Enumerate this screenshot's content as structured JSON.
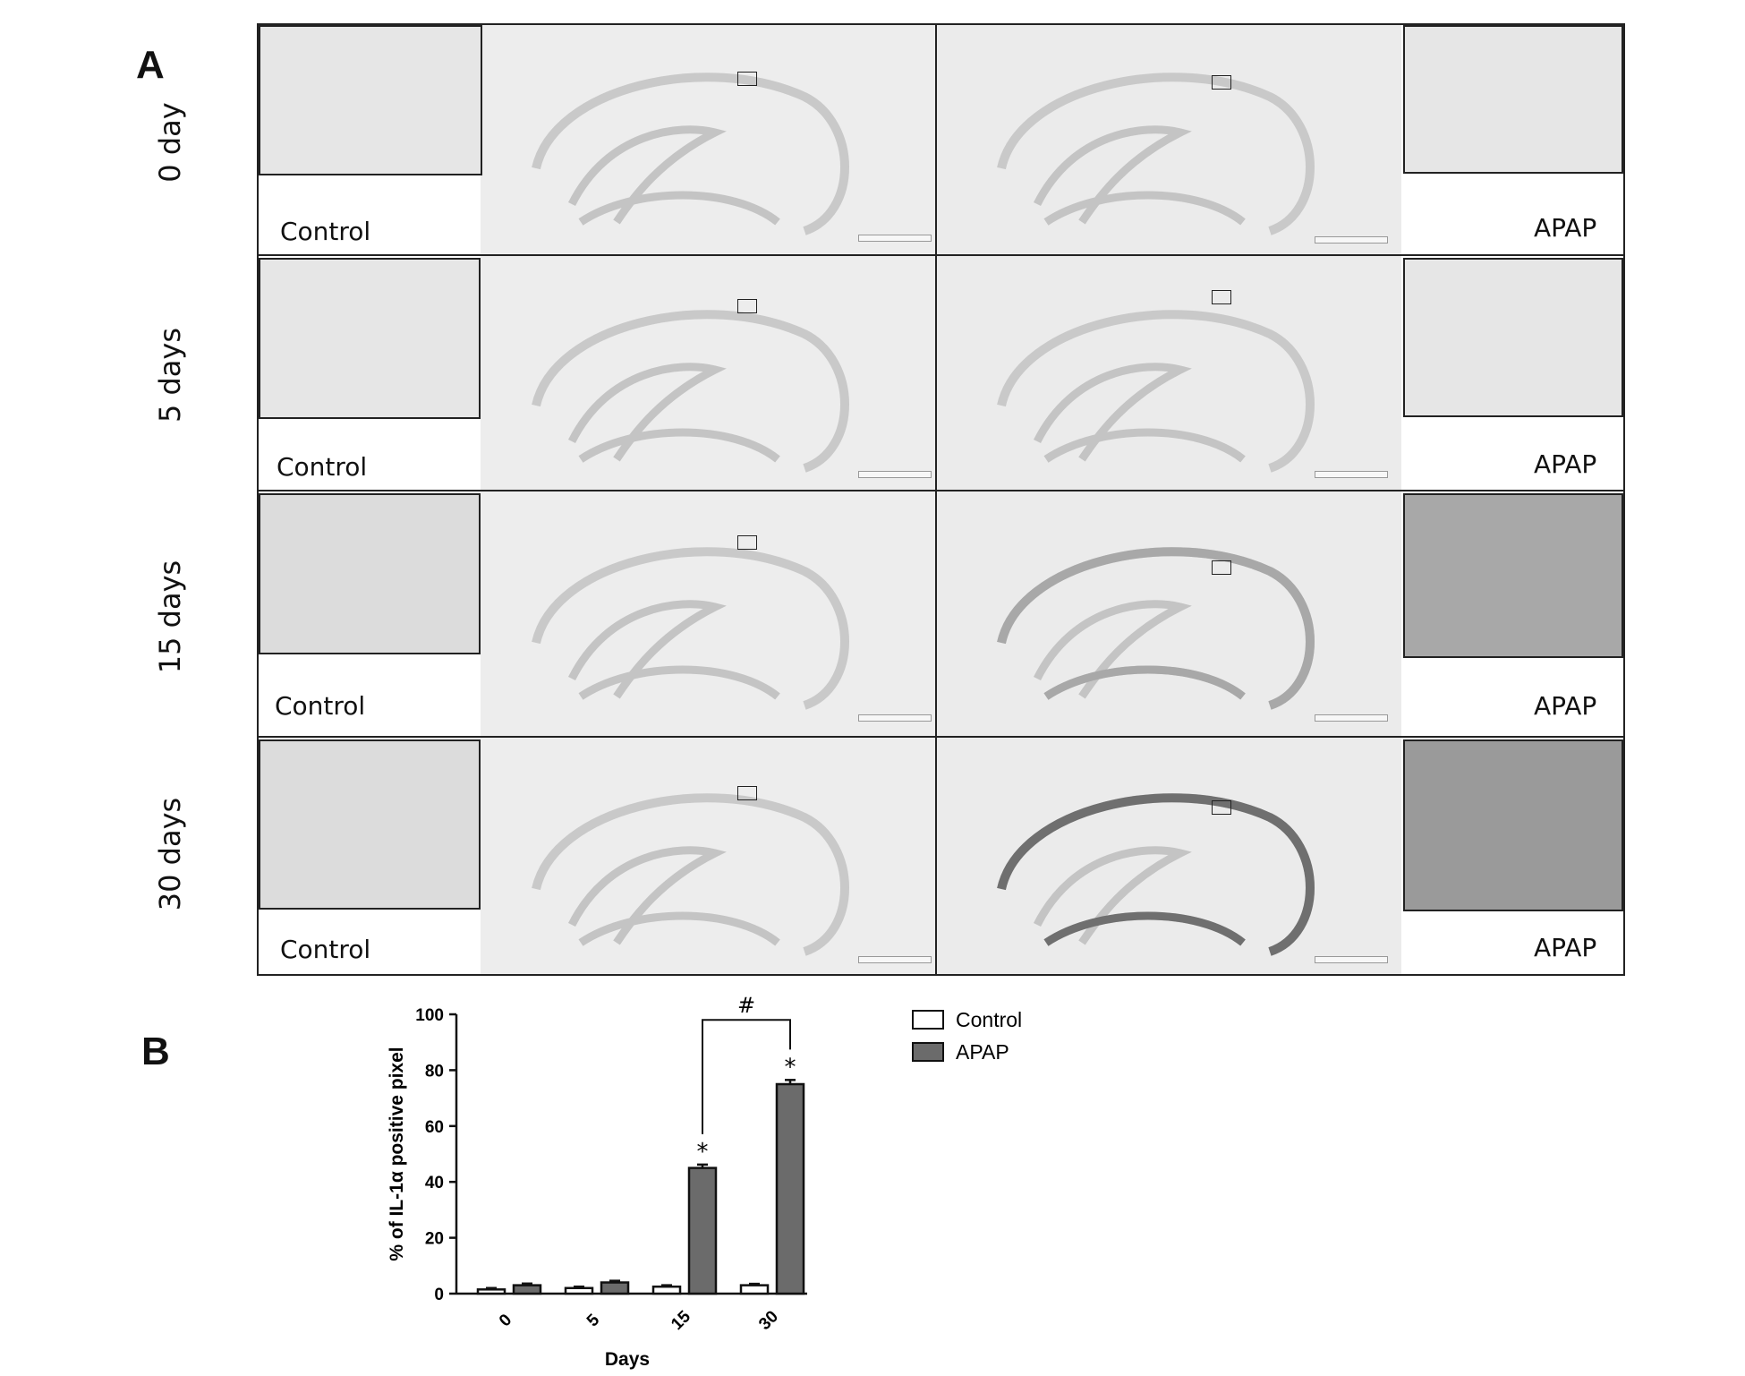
{
  "panel_a": {
    "letter": "A",
    "rows": [
      {
        "label": "0 day",
        "control_label": "Control",
        "apap_label": "APAP"
      },
      {
        "label": "5 days",
        "control_label": "Control",
        "apap_label": "APAP"
      },
      {
        "label": "15 days",
        "control_label": "Control",
        "apap_label": "APAP"
      },
      {
        "label": "30 days",
        "control_label": "Control",
        "apap_label": "APAP"
      }
    ]
  },
  "panel_b": {
    "letter": "B"
  },
  "chart_data": {
    "type": "bar",
    "xlabel": "Days",
    "ylabel": "% of IL-1α positive pixel",
    "categories": [
      "0",
      "5",
      "15",
      "30"
    ],
    "ylim": [
      0,
      100
    ],
    "yticks": [
      0,
      20,
      40,
      60,
      80,
      100
    ],
    "series": [
      {
        "name": "Control",
        "values": [
          1.5,
          2,
          2.5,
          3
        ],
        "errors": [
          0.5,
          0.5,
          0.5,
          0.5
        ],
        "color": "#ffffff"
      },
      {
        "name": "APAP",
        "values": [
          3,
          4,
          45,
          75
        ],
        "errors": [
          0.6,
          0.6,
          1.2,
          1.5
        ],
        "color": "#6b6b6b"
      }
    ],
    "annotations": {
      "significance_star": "*",
      "bracket_label": "#",
      "star_categories": [
        "15",
        "30"
      ],
      "bracket_between": [
        "15",
        "30"
      ]
    },
    "legend_position": "top-right"
  }
}
